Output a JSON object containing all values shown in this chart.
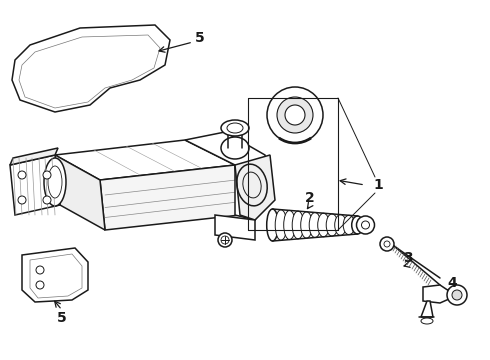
{
  "background_color": "#ffffff",
  "line_color": "#1a1a1a",
  "figsize": [
    4.9,
    3.6
  ],
  "dpi": 100,
  "label_fontsize": 10,
  "label_fontweight": "bold",
  "label_italic_fontsize": 9
}
